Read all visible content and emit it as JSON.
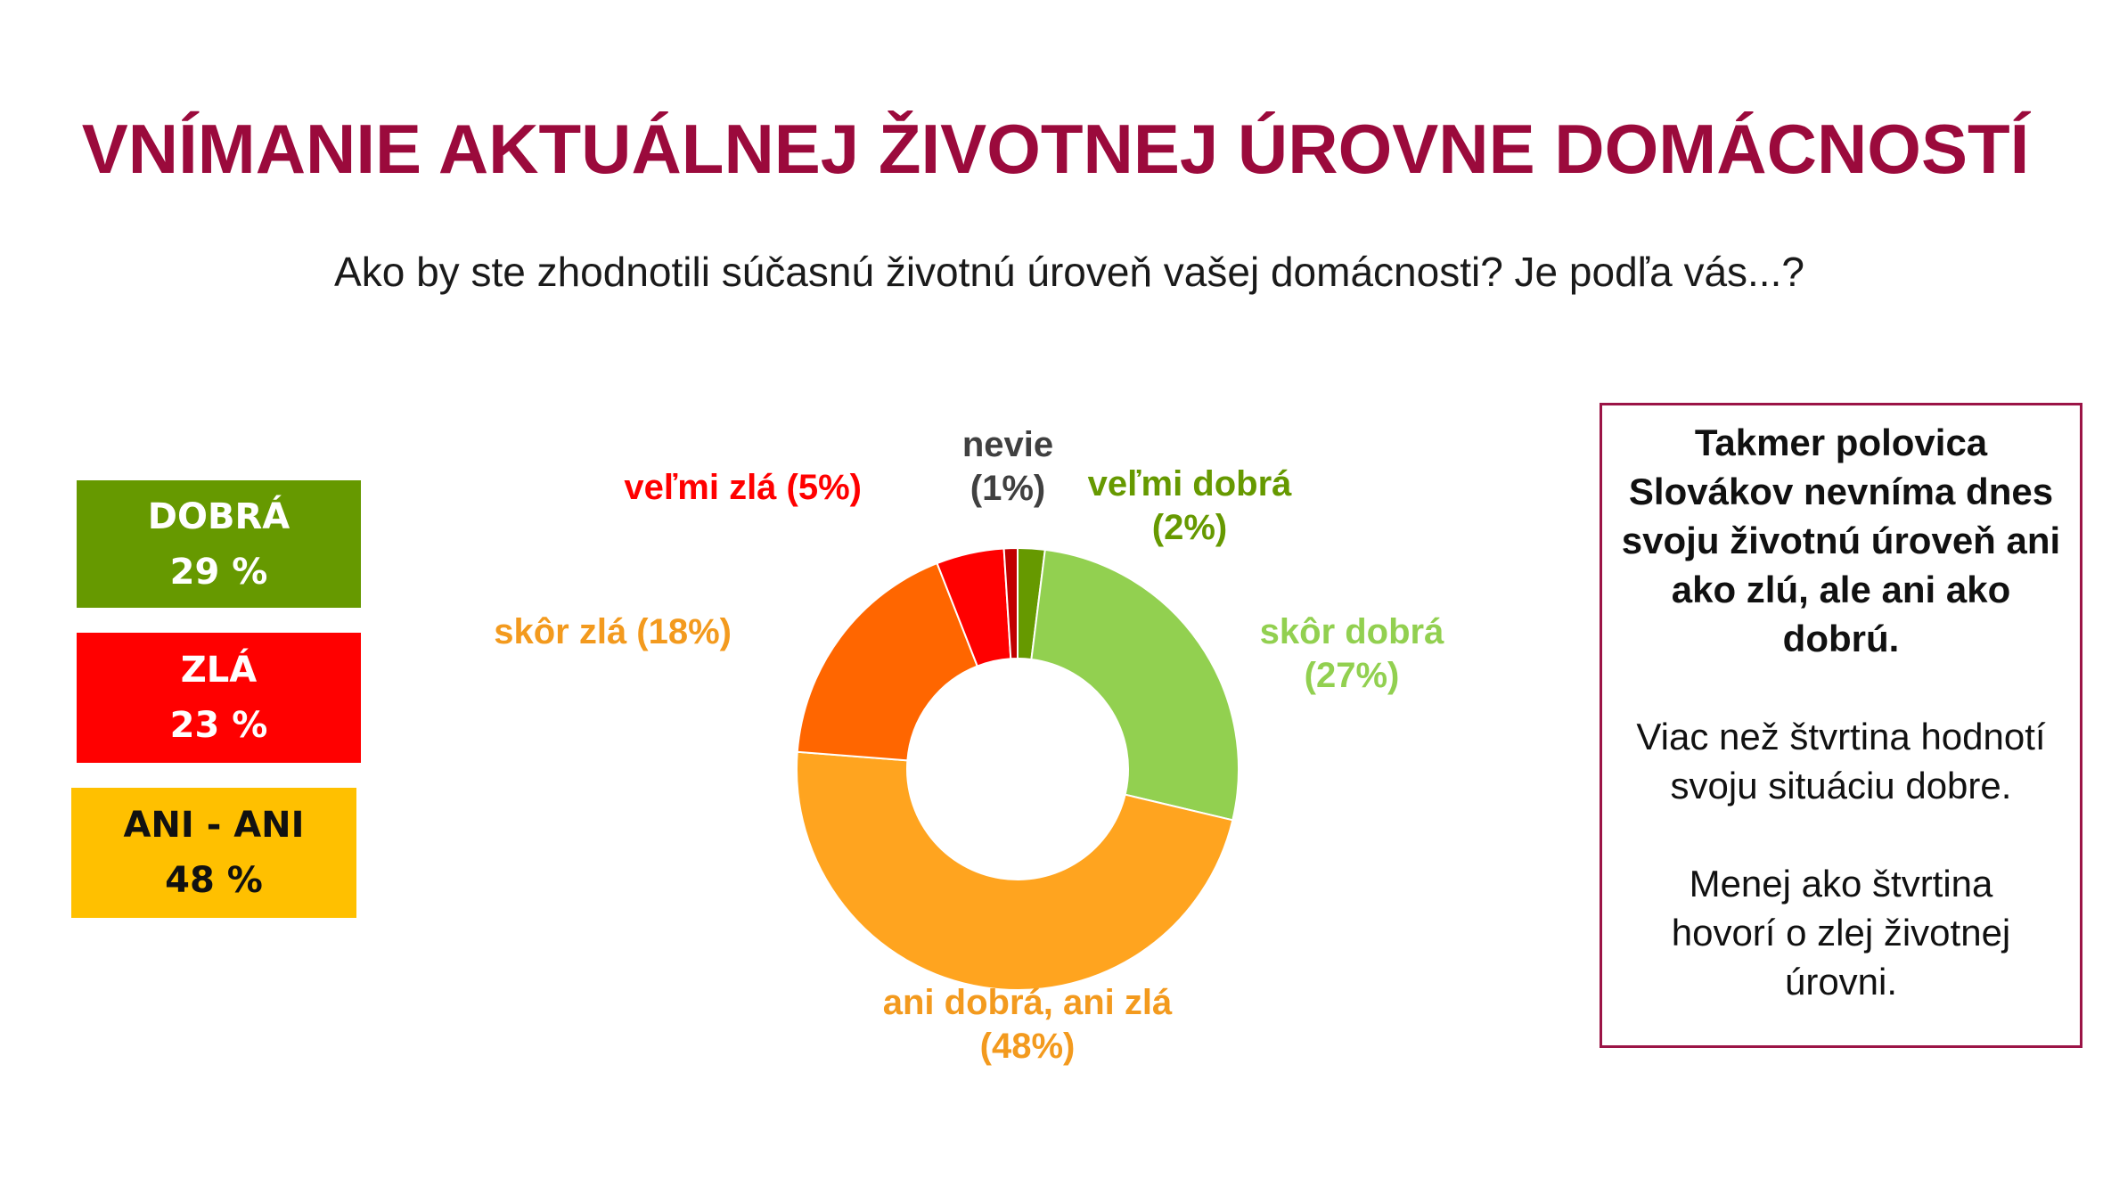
{
  "title": "VNÍMANIE AKTUÁLNEJ ŽIVOTNEJ ÚROVNE DOMÁCNOSTÍ",
  "subtitle": "Ako by ste zhodnotili súčasnú životnú úroveň vašej domácnosti? Je podľa vás...?",
  "summary_badges": [
    {
      "label": "DOBRÁ",
      "value": "29 %",
      "color": "#669900"
    },
    {
      "label": "ZLÁ",
      "value": "23 %",
      "color": "#ff0000"
    },
    {
      "label": "ANI - ANI",
      "value": "48 %",
      "color": "#ffc000"
    }
  ],
  "chart_data": {
    "type": "pie",
    "donut": true,
    "slices": [
      {
        "name": "veľmi dobrá",
        "value": 2,
        "label_line1": "veľmi dobrá",
        "label_line2": "(2%)",
        "color": "#669900",
        "label_color": "#669900"
      },
      {
        "name": "skôr dobrá",
        "value": 27,
        "label_line1": "skôr dobrá",
        "label_line2": "(27%)",
        "color": "#92d050",
        "label_color": "#92d050"
      },
      {
        "name": "ani dobrá, ani zlá",
        "value": 48,
        "label_line1": "ani dobrá, ani zlá",
        "label_line2": "(48%)",
        "color": "#ffa41f",
        "label_color": "#f39a1e"
      },
      {
        "name": "skôr zlá",
        "value": 18,
        "label_line1": "skôr zlá (18%)",
        "label_line2": "",
        "color": "#ff6600",
        "label_color": "#f39a1e"
      },
      {
        "name": "veľmi zlá",
        "value": 5,
        "label_line1": "veľmi zlá (5%)",
        "label_line2": "",
        "color": "#ff0000",
        "label_color": "#ff0000"
      },
      {
        "name": "nevie",
        "value": 1,
        "label_line1": "nevie",
        "label_line2": "(1%)",
        "color": "#c00000",
        "label_color": "#404040"
      }
    ]
  },
  "note": {
    "lead": "Takmer polovica Slovákov nevníma dnes svoju životnú úroveň ani ako zlú, ale ani ako dobrú.",
    "para2": "Viac než štvrtina hodnotí svoju situáciu dobre.",
    "para3": "Menej ako štvrtina hovorí o zlej životnej úrovni."
  }
}
